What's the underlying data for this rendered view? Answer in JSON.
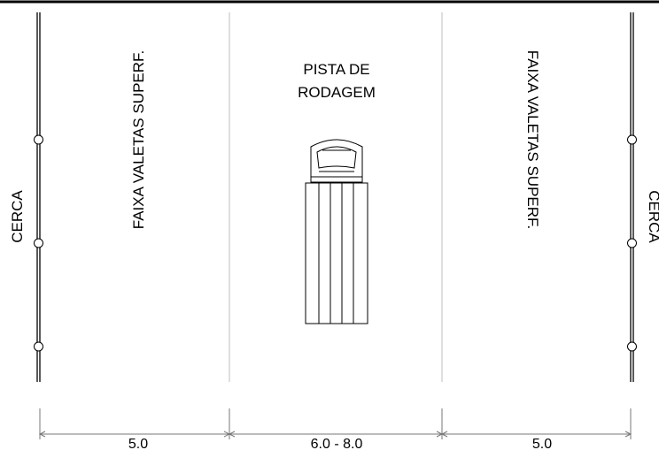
{
  "labels": {
    "cerca_left": "CERCA",
    "cerca_right": "CERCA",
    "faixa_left": "FAIXA VALETAS SUPERF.",
    "faixa_right": "FAIXA VALETAS SUPERF.",
    "pista_line1": "PISTA DE",
    "pista_line2": "RODAGEM"
  },
  "dimensions": {
    "left_strip": "5.0",
    "roadway": "6.0 - 8.0",
    "right_strip": "5.0"
  },
  "colors": {
    "ink": "#000000",
    "guide": "#bdbdbd",
    "dim": "#777777"
  }
}
